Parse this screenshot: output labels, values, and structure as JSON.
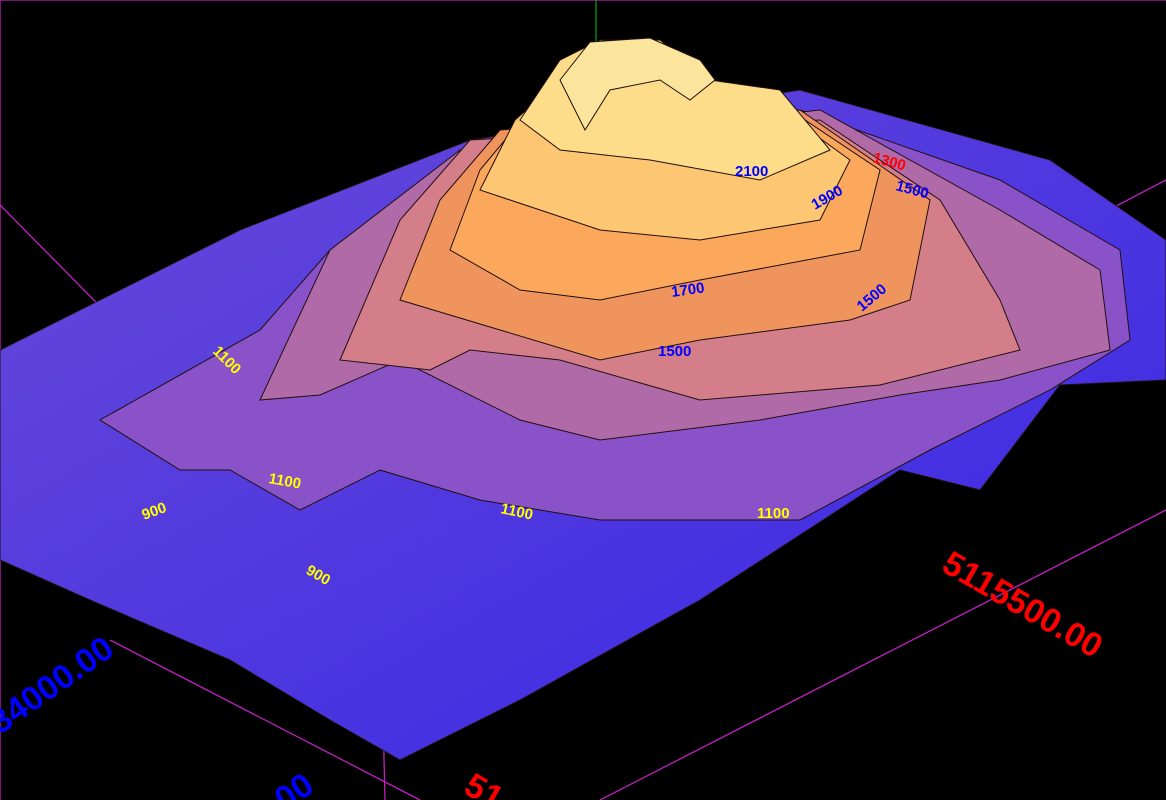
{
  "view": {
    "colors": {
      "background": "#000000",
      "bounding_box": "#c020c0",
      "low": "#3a2ae8",
      "mid": "#b06aa8",
      "high": "#ffd070",
      "x_axis_label": "#ff0000",
      "y_axis_label": "#0000ff",
      "contour_line": "#201010"
    }
  },
  "axis_labels": {
    "easting_right": "5115500.00",
    "northing_left": "34000.00",
    "easting_bottom": "51",
    "northing_bottom": "00"
  },
  "contour_labels": [
    {
      "id": "c2100",
      "text": "2100",
      "color": "#0000ff"
    },
    {
      "id": "c1900",
      "text": "1900",
      "color": "#0000ff"
    },
    {
      "id": "c1300",
      "text": "1300",
      "color": "#ff0000"
    },
    {
      "id": "c1500a",
      "text": "1500",
      "color": "#0000ff"
    },
    {
      "id": "c1700",
      "text": "1700",
      "color": "#0000ff"
    },
    {
      "id": "c1500b",
      "text": "1500",
      "color": "#0000ff"
    },
    {
      "id": "c1500c",
      "text": "1500",
      "color": "#0000ff"
    },
    {
      "id": "c1100a",
      "text": "1100",
      "color": "#ffff00"
    },
    {
      "id": "c1100b",
      "text": "1100",
      "color": "#ffff00"
    },
    {
      "id": "c1100c",
      "text": "1100",
      "color": "#ffff00"
    },
    {
      "id": "c1100d",
      "text": "1100",
      "color": "#ffff00"
    },
    {
      "id": "c900a",
      "text": "900",
      "color": "#ffff00"
    },
    {
      "id": "c900b",
      "text": "900",
      "color": "#ffff00"
    }
  ]
}
